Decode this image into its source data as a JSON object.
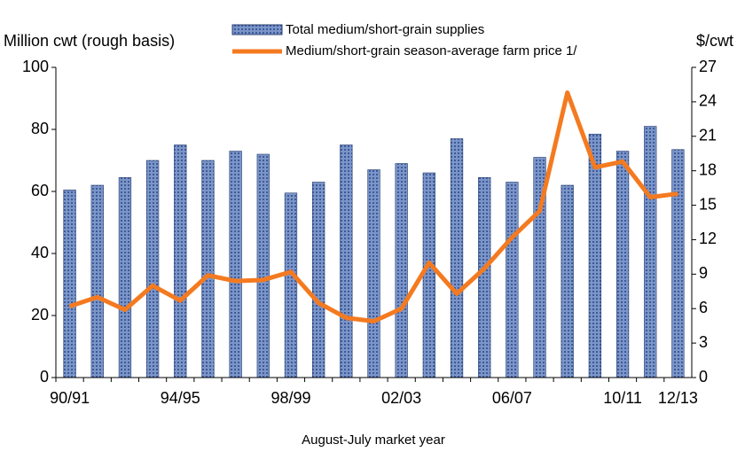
{
  "chart_data": {
    "type": "bar-line",
    "categories": [
      "90/91",
      null,
      null,
      null,
      "94/95",
      null,
      null,
      null,
      "98/99",
      null,
      null,
      null,
      "02/03",
      null,
      null,
      null,
      "06/07",
      null,
      null,
      null,
      "10/11",
      null,
      "12/13"
    ],
    "series": [
      {
        "name": "Total medium/short-grain supplies",
        "type": "bar",
        "color": "#7b95c8",
        "values": [
          60.5,
          62,
          64.5,
          70,
          75,
          70,
          73,
          72,
          59.5,
          63,
          75,
          67,
          69,
          66,
          77,
          64.5,
          63,
          71,
          62,
          78.5,
          73,
          81,
          73.5
        ]
      },
      {
        "name": "Medium/short-grain season-average farm price 1/",
        "type": "line",
        "axis": "y2",
        "color": "#f47a20",
        "values": [
          6.2,
          7,
          5.9,
          8,
          6.7,
          8.9,
          8.4,
          8.5,
          9.2,
          6.5,
          5.2,
          4.9,
          6,
          10,
          7.3,
          9.5,
          12.2,
          14.5,
          24.8,
          18.3,
          18.8,
          15.7,
          16
        ]
      }
    ],
    "ylabel": "Million cwt (rough basis)",
    "y2label": "$/cwt",
    "xlabel": "August-July market year",
    "ylim": [
      0,
      100
    ],
    "yticks": [
      0,
      20,
      40,
      60,
      80,
      100
    ],
    "y2lim": [
      0,
      27
    ],
    "y2ticks": [
      0,
      3,
      6,
      9,
      12,
      15,
      18,
      21,
      24,
      27
    ]
  }
}
